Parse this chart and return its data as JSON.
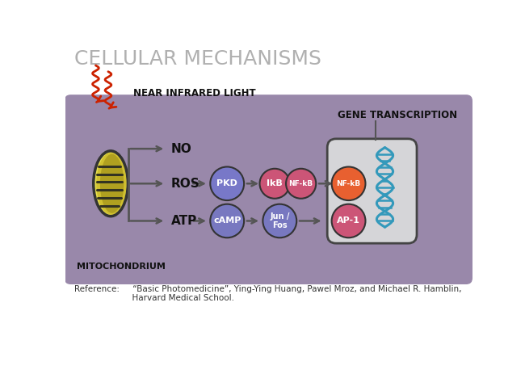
{
  "title": "CELLULAR MECHANISMS",
  "title_color": "#b0b0b0",
  "bg_color": "#ffffff",
  "box_color": "#9988aa",
  "near_infrared_label": "NEAR INFRARED LIGHT",
  "mitochondrium_label": "MITOCHONDRIUM",
  "gene_transcription_label": "GENE TRANSCRIPTION",
  "no_label": "NO",
  "ros_label": "ROS",
  "atp_label": "ATP",
  "pkd_label": "PKD",
  "ikb_label": "IkB",
  "nfkb1_label": "NF-kB",
  "nfkb2_label": "NF-kB",
  "camp_label": "cAMP",
  "junfos_label": "Jun /\nFos",
  "ap1_label": "AP-1",
  "pkd_color": "#7878c8",
  "ikb_color": "#cc5577",
  "nfkb1_color": "#cc5577",
  "nfkb2_color": "#e86030",
  "camp_color": "#7878c0",
  "junfos_color": "#7878c0",
  "ap1_color": "#cc5577",
  "mito_color_outer": "#c8c030",
  "mito_color_stripe": "#556622",
  "dna_color": "#3399bb",
  "nucleus_color": "#d5d5d8",
  "arrow_color": "#555555",
  "label_color": "#111111",
  "wavy_color": "#cc2200",
  "ref_line1": "Reference:     “Basic Photomedicine”, Ying-Ying Huang, Pawel Mroz, and Michael R. Hamblin,",
  "ref_line2": "                      Harvard Medical School."
}
